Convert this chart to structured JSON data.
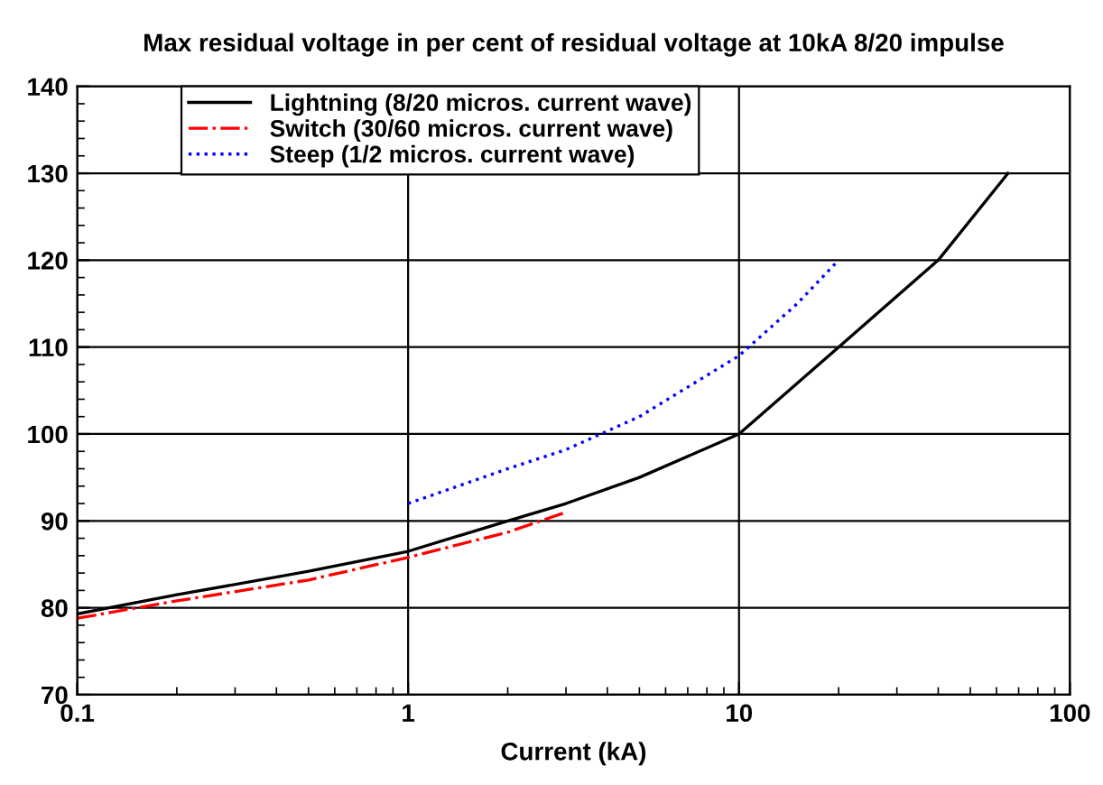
{
  "chart_data": {
    "type": "line",
    "title": "Max residual voltage in per cent of residual voltage at 10kA 8/20 impulse",
    "xlabel": "Current (kA)",
    "log": "x",
    "xlim": [
      0.1,
      100
    ],
    "xticks": [
      0.1,
      1,
      10,
      100
    ],
    "ylim": [
      70,
      140
    ],
    "yticks": [
      70,
      80,
      90,
      100,
      110,
      120,
      130,
      140
    ],
    "grid": true,
    "legend": "top left",
    "marker": "none",
    "series": [
      {
        "name": "Lightning (8/20 micros. current wave)",
        "color": "#000000",
        "line_style": "solid",
        "x": [
          0.1,
          0.2,
          0.5,
          1,
          2,
          3,
          5,
          10,
          20,
          40,
          65
        ],
        "values": [
          79.3,
          81.5,
          84.2,
          86.5,
          90,
          92,
          95,
          100,
          110,
          120,
          130
        ]
      },
      {
        "name": "Switch (30/60 micros. current wave)",
        "color": "#ff0000",
        "line_style": "dashdot",
        "x": [
          0.1,
          0.2,
          0.5,
          1,
          2,
          3
        ],
        "values": [
          78.8,
          80.8,
          83.2,
          85.8,
          88.7,
          91
        ]
      },
      {
        "name": "Steep (1/2 micros. current wave)",
        "color": "#0000ff",
        "line_style": "dotted",
        "x": [
          1,
          2,
          3,
          5,
          10,
          15,
          20
        ],
        "values": [
          92,
          96,
          98.2,
          102,
          109,
          115,
          120
        ]
      }
    ]
  }
}
